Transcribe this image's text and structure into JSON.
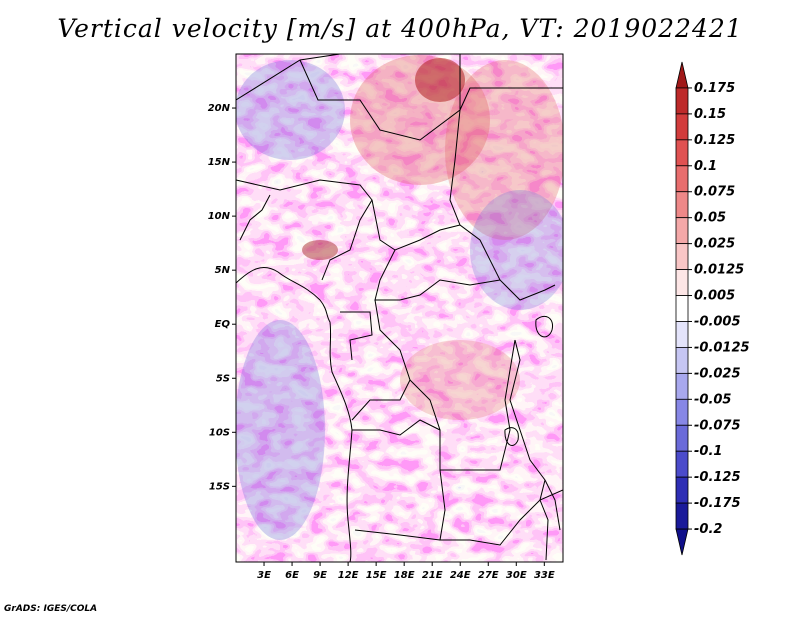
{
  "title": "Vertical velocity [m/s] at 400hPa, VT: 2019022421",
  "credit": "GrADS: IGES/COLA",
  "map": {
    "lon_range": [
      0,
      35
    ],
    "lat_range": [
      -22,
      25
    ],
    "lat_ticks": [
      {
        "value": 20,
        "label": "20N"
      },
      {
        "value": 15,
        "label": "15N"
      },
      {
        "value": 10,
        "label": "10N"
      },
      {
        "value": 5,
        "label": "5N"
      },
      {
        "value": 0,
        "label": "EQ"
      },
      {
        "value": -5,
        "label": "5S"
      },
      {
        "value": -10,
        "label": "10S"
      },
      {
        "value": -15,
        "label": "15S"
      }
    ],
    "lon_ticks": [
      {
        "value": 3,
        "label": "3E"
      },
      {
        "value": 6,
        "label": "6E"
      },
      {
        "value": 9,
        "label": "9E"
      },
      {
        "value": 12,
        "label": "12E"
      },
      {
        "value": 15,
        "label": "15E"
      },
      {
        "value": 18,
        "label": "18E"
      },
      {
        "value": 21,
        "label": "21E"
      },
      {
        "value": 24,
        "label": "24E"
      },
      {
        "value": 27,
        "label": "27E"
      },
      {
        "value": 30,
        "label": "30E"
      },
      {
        "value": 33,
        "label": "33E"
      }
    ]
  },
  "colorbar": {
    "labels": [
      "0.175",
      "0.15",
      "0.125",
      "0.1",
      "0.075",
      "0.05",
      "0.025",
      "0.0125",
      "0.005",
      "-0.005",
      "-0.0125",
      "-0.025",
      "-0.05",
      "-0.075",
      "-0.1",
      "-0.125",
      "-0.175",
      "-0.2"
    ],
    "colors": [
      "#a01818",
      "#bd2a2a",
      "#d23c3c",
      "#e05252",
      "#e86d6d",
      "#ee8888",
      "#f4a8a8",
      "#f9c6c6",
      "#fde6e6",
      "#ffffff",
      "#e4e4fb",
      "#c6c6f3",
      "#a8a8ee",
      "#8787e6",
      "#6a6ad9",
      "#4b4bcb",
      "#2e2eb5",
      "#1a1a9a",
      "#10108a"
    ]
  }
}
